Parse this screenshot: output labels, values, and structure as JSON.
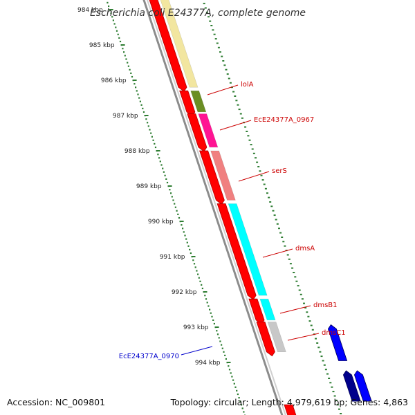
{
  "title": "Escherichia coli E24377A, complete genome",
  "colors": {
    "backbone": "#8c8c8c",
    "tick": "#2e7d32",
    "forward_cds": "#ff0000",
    "reverse_cds": "#0000ff",
    "reverse_cds_dark": "#00008b",
    "label_forward": "#cc0000",
    "label_reverse": "#0000cc"
  },
  "axis": {
    "unit": "kbp",
    "ticks": [
      {
        "value": 984,
        "label": "984 kbp"
      },
      {
        "value": 985,
        "label": "985 kbp"
      },
      {
        "value": 986,
        "label": "986 kbp"
      },
      {
        "value": 987,
        "label": "987 kbp"
      },
      {
        "value": 988,
        "label": "988 kbp"
      },
      {
        "value": 989,
        "label": "989 kbp"
      },
      {
        "value": 990,
        "label": "990 kbp"
      },
      {
        "value": 991,
        "label": "991 kbp"
      },
      {
        "value": 992,
        "label": "992 kbp"
      },
      {
        "value": 993,
        "label": "993 kbp"
      },
      {
        "value": 994,
        "label": "994 kbp"
      }
    ]
  },
  "features": {
    "forward_cds": [
      {
        "start": 983.7,
        "end": 986.2
      },
      {
        "start": 986.3,
        "end": 986.9
      },
      {
        "start": 986.95,
        "end": 987.9
      },
      {
        "start": 988.0,
        "end": 989.4
      },
      {
        "start": 989.5,
        "end": 992.1
      },
      {
        "start": 992.2,
        "end": 992.8
      },
      {
        "start": 992.85,
        "end": 993.7
      },
      {
        "start": 995.2,
        "end": 995.6
      }
    ],
    "reverse_cds": [
      {
        "start": 993.05,
        "end": 993.95,
        "color": "#0000ff"
      },
      {
        "start": 994.35,
        "end": 995.1,
        "color": "#00008b"
      },
      {
        "start": 994.35,
        "end": 995.1,
        "color": "#0000ff"
      }
    ],
    "annotation_blocks": [
      {
        "start": 983.7,
        "end": 986.2,
        "color": "#f2e6a0"
      },
      {
        "start": 986.3,
        "end": 986.9,
        "color": "#6b8e23"
      },
      {
        "start": 986.95,
        "end": 987.9,
        "color": "#ff1493"
      },
      {
        "start": 988.0,
        "end": 989.4,
        "color": "#f08080"
      },
      {
        "start": 989.5,
        "end": 992.1,
        "color": "#00ffff"
      },
      {
        "start": 992.2,
        "end": 992.8,
        "color": "#00ffff"
      },
      {
        "start": 992.85,
        "end": 993.7,
        "color": "#c8c8c8"
      }
    ]
  },
  "labels": [
    {
      "text": "lolA",
      "position": 986.6,
      "side": "right",
      "color": "#cc0000"
    },
    {
      "text": "EcE24377A_0967",
      "position": 987.4,
      "side": "right",
      "color": "#cc0000"
    },
    {
      "text": "serS",
      "position": 988.8,
      "side": "right",
      "color": "#cc0000"
    },
    {
      "text": "dmsA",
      "position": 990.8,
      "side": "right",
      "color": "#cc0000"
    },
    {
      "text": "dmsB1",
      "position": 992.5,
      "side": "right",
      "color": "#cc0000"
    },
    {
      "text": "dmsC1",
      "position": 993.3,
      "side": "right",
      "color": "#cc0000"
    },
    {
      "text": "EcE24377A_0970",
      "position": 993.5,
      "side": "left",
      "color": "#0000cc"
    }
  ],
  "footer": {
    "accession": "Accession: NC_009801",
    "stats": "Topology: circular; Length: 4,979,619 bp; Genes: 4,863"
  }
}
